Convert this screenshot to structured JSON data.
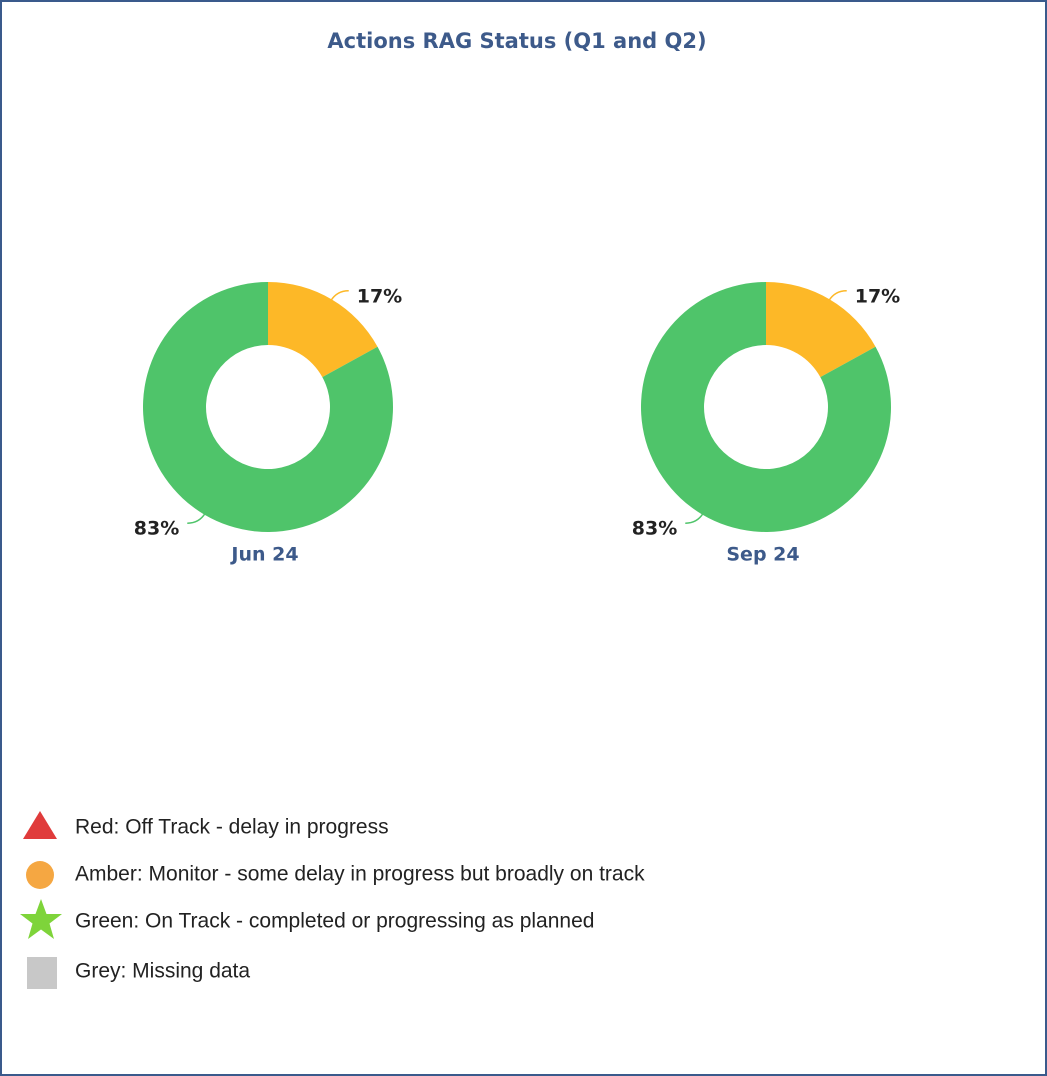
{
  "title": "Actions RAG Status (Q1 and Q2)",
  "chart_data": [
    {
      "type": "pie",
      "title": "Jun 24",
      "values": [
        17,
        83
      ],
      "value_labels": [
        "17%",
        "83%"
      ],
      "colors": [
        "#fdb827",
        "#4fc46a"
      ],
      "donut": true
    },
    {
      "type": "pie",
      "title": "Sep 24",
      "values": [
        17,
        83
      ],
      "value_labels": [
        "17%",
        "83%"
      ],
      "colors": [
        "#fdb827",
        "#4fc46a"
      ],
      "donut": true
    }
  ],
  "legend": {
    "items": [
      "Red: Off Track - delay in progress",
      "Amber: Monitor - some delay in progress but broadly on track",
      "Green: On Track - completed or progressing as planned",
      "Grey: Missing data"
    ]
  }
}
